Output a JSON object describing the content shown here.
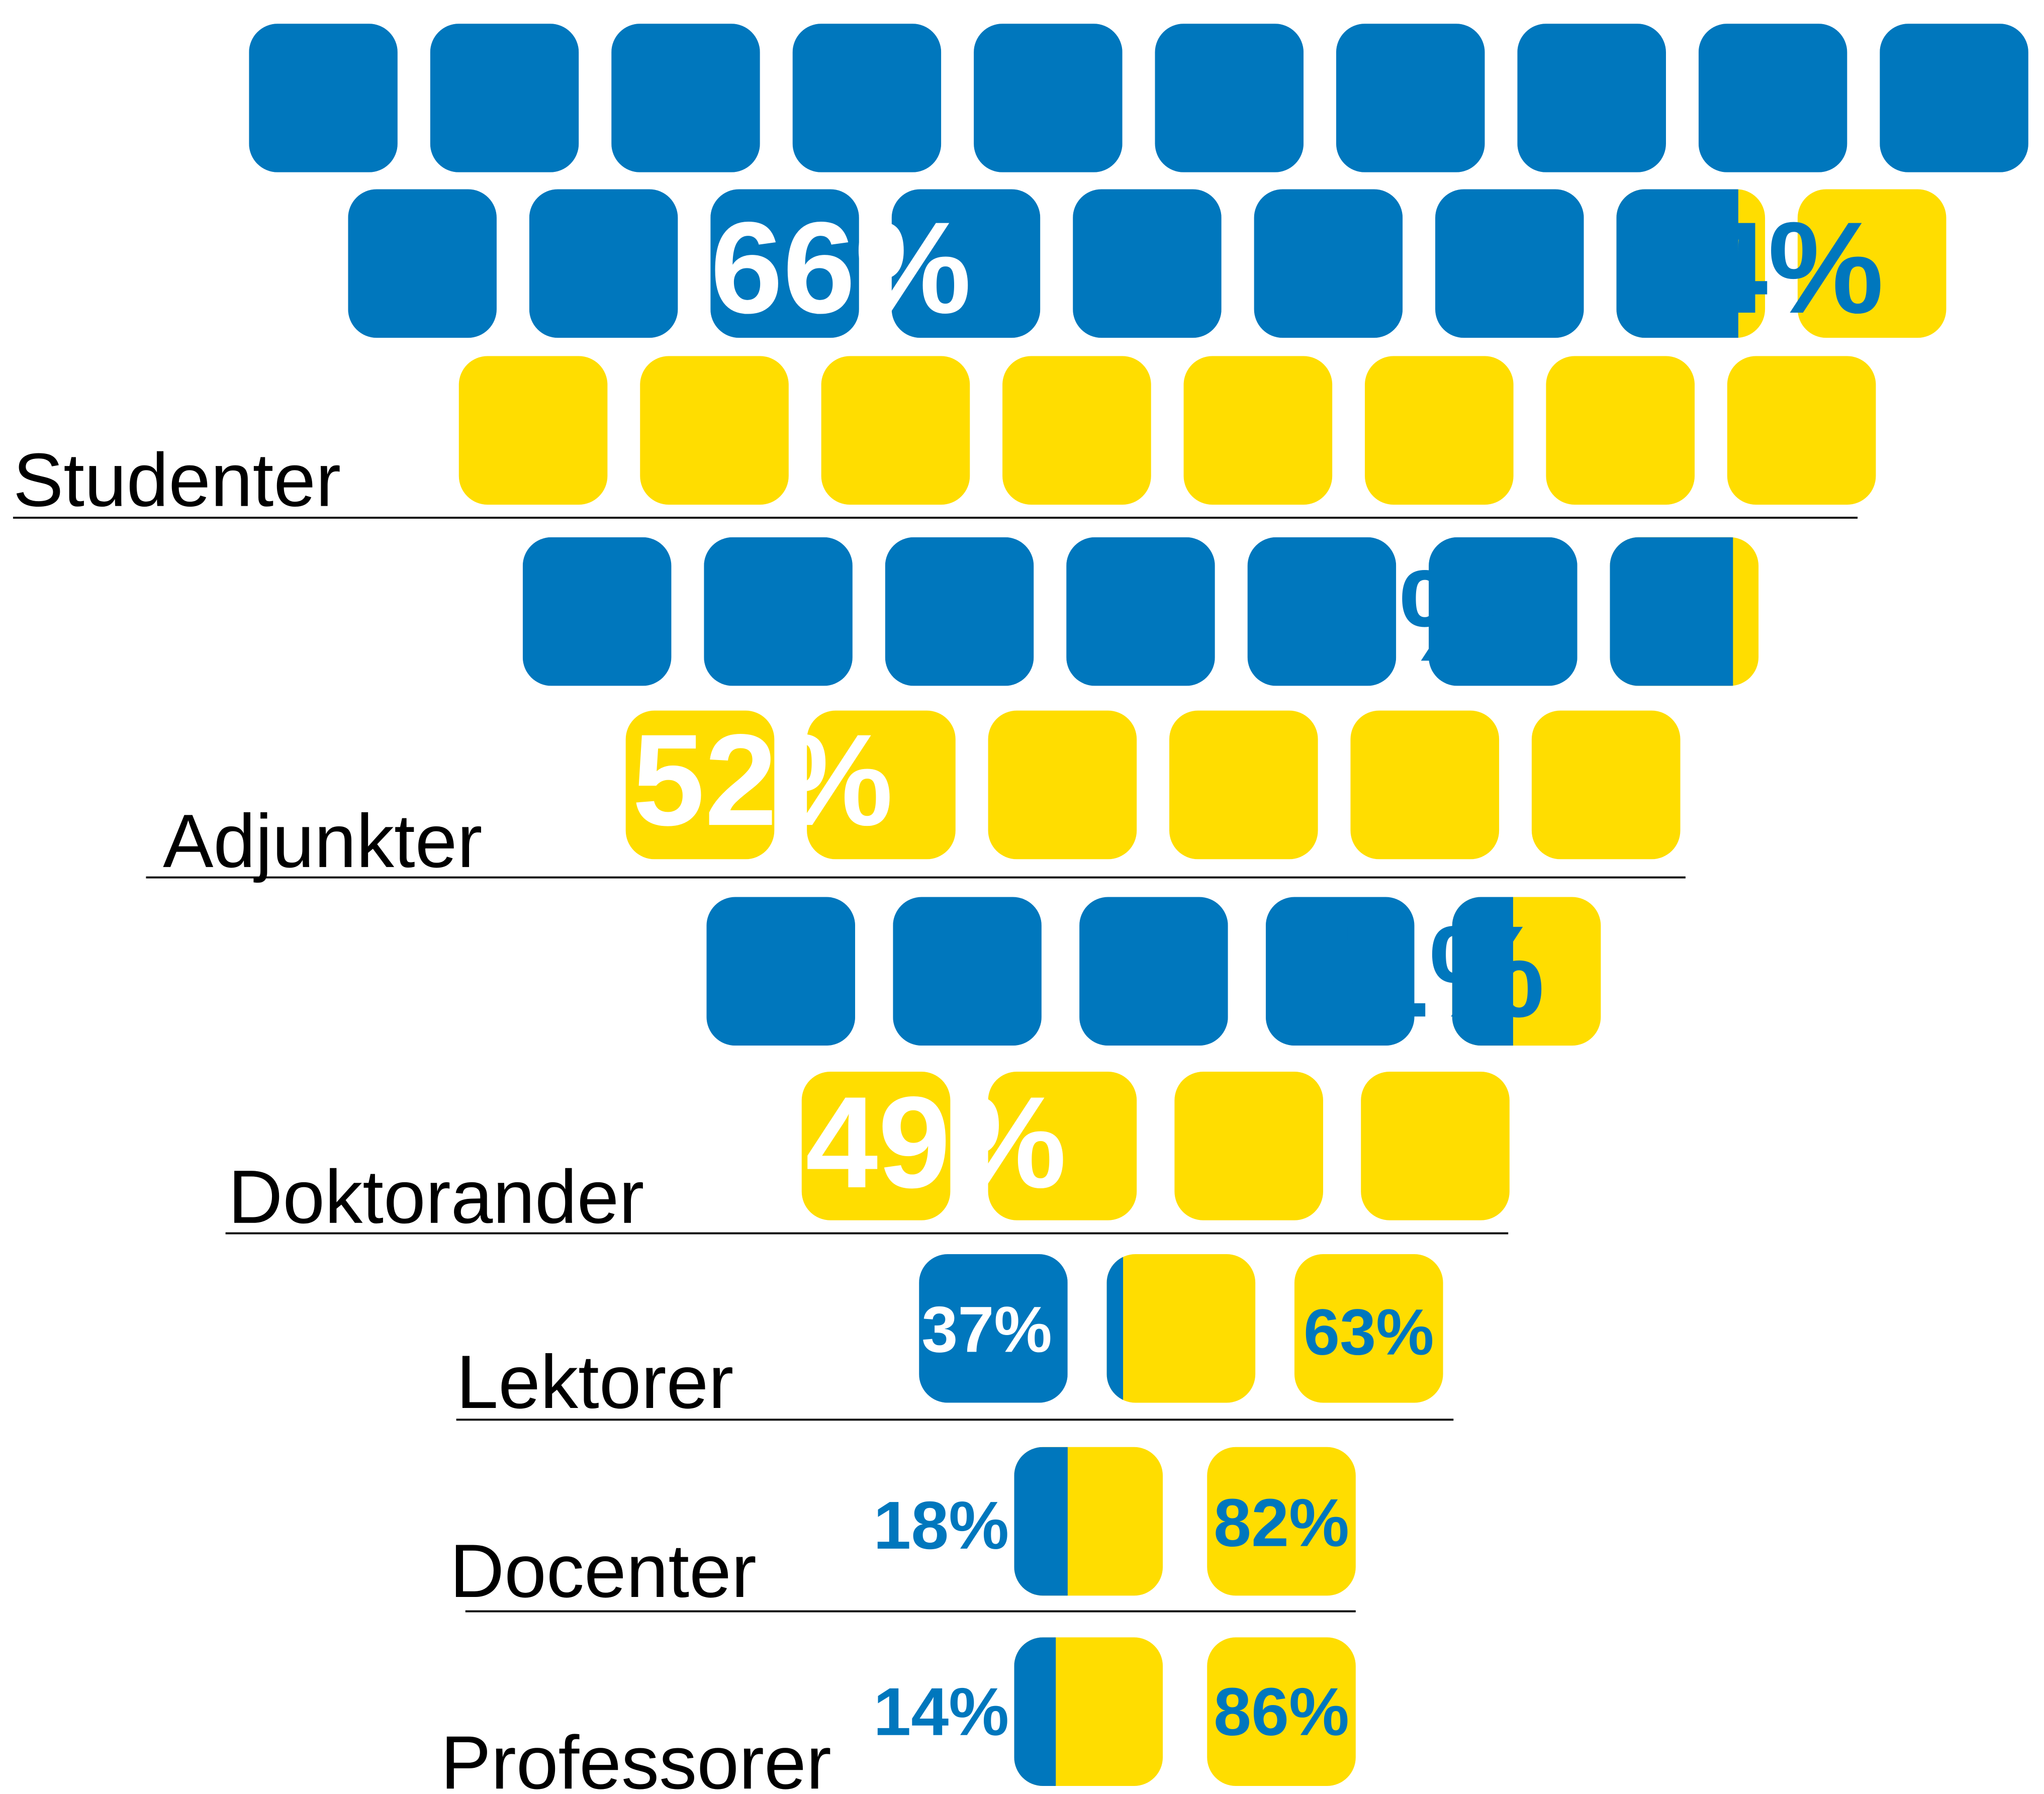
{
  "chart_data": {
    "type": "waffle",
    "categories": [
      "Studenter",
      "Adjunkter",
      "Doktorander",
      "Lektorer",
      "Docenter",
      "Professorer"
    ],
    "series": [
      {
        "color": "#0077bd",
        "values": [
          66,
          52,
          49,
          37,
          18,
          14
        ],
        "value_labels": [
          "66%",
          "52%",
          "49%",
          "37%",
          "18%",
          "14%"
        ]
      },
      {
        "color": "#ffdd00",
        "values": [
          34,
          47,
          51,
          63,
          82,
          86
        ],
        "value_labels": [
          "34%",
          "47%",
          "51%",
          "63%",
          "82%",
          "86%"
        ]
      }
    ]
  }
}
